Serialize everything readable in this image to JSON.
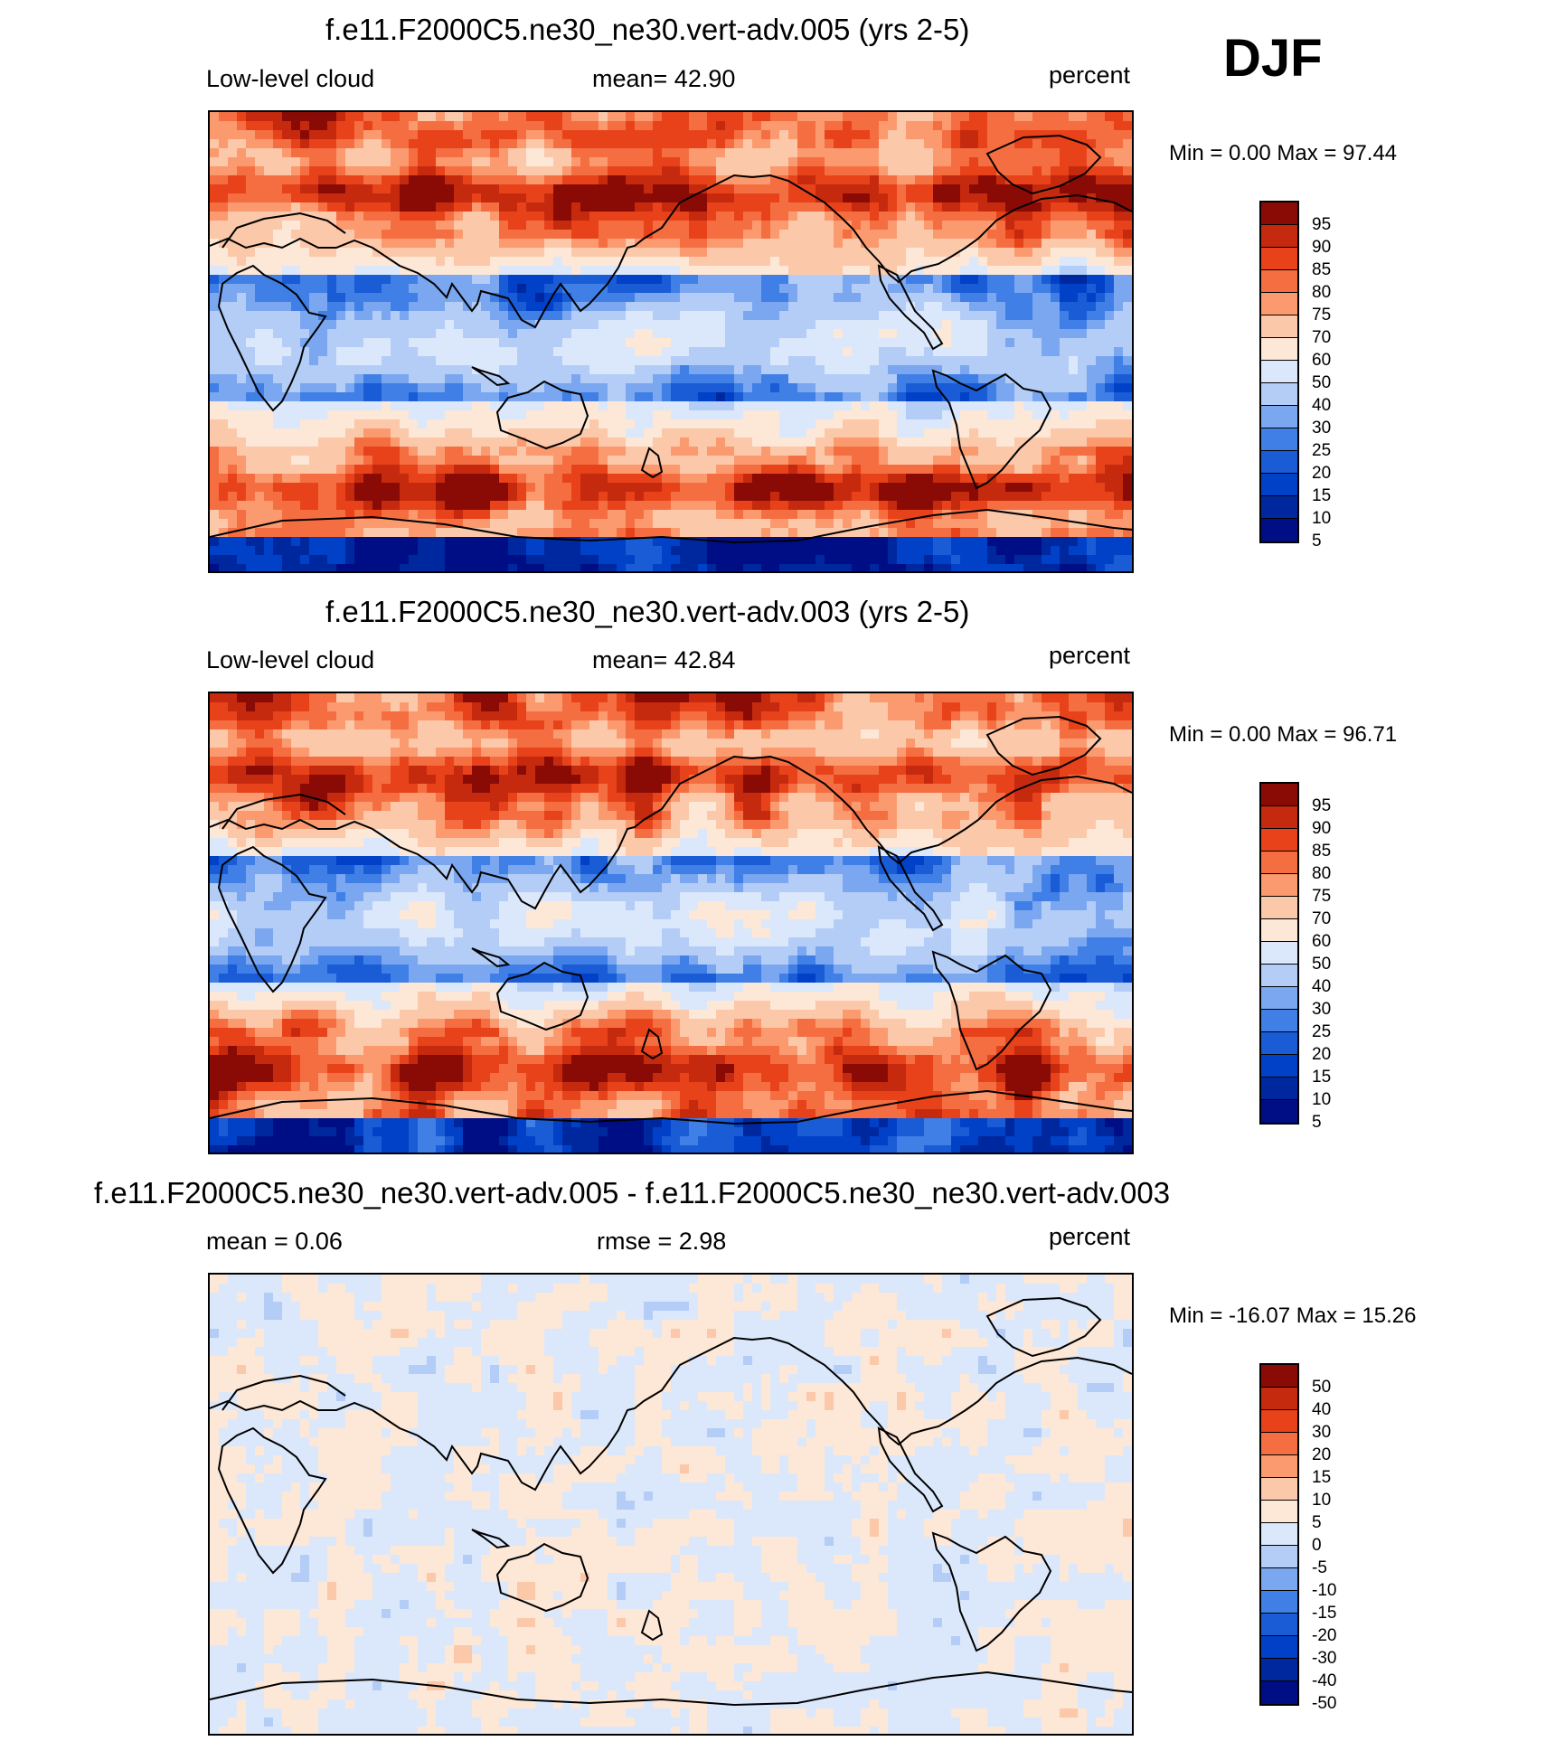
{
  "season": "DJF",
  "colors": {
    "full": [
      "#000e86",
      "#00289e",
      "#0041c8",
      "#1a5bd6",
      "#3f7fe6",
      "#7aa7f0",
      "#b3cdf7",
      "#dbe8fb",
      "#fde7d6",
      "#fcc8aa",
      "#fb9a6f",
      "#f56e42",
      "#e8421a",
      "#c62a0e",
      "#8a0a06"
    ],
    "diff": [
      "#000e86",
      "#00289e",
      "#0041c8",
      "#1a5bd6",
      "#3f7fe6",
      "#7aa7f0",
      "#b3cdf7",
      "#dbe8fb",
      "#fde7d6",
      "#fcc8aa",
      "#fb9a6f",
      "#f56e42",
      "#e8421a",
      "#c62a0e",
      "#8a0a06"
    ]
  },
  "panels": [
    {
      "title": "f.e11.F2000C5.ne30_ne30.vert-adv.005 (yrs 2-5)",
      "left_label": "Low-level cloud",
      "center_label": "mean=  42.90",
      "right_label": "percent",
      "minmax": "Min =   0.00 Max =  97.44",
      "colorbar_labels": [
        "95",
        "90",
        "85",
        "80",
        "75",
        "70",
        "60",
        "50",
        "40",
        "30",
        "25",
        "20",
        "15",
        "10",
        "5"
      ],
      "map_kind": "full"
    },
    {
      "title": "f.e11.F2000C5.ne30_ne30.vert-adv.003 (yrs 2-5)",
      "left_label": "Low-level cloud",
      "center_label": "mean=  42.84",
      "right_label": "percent",
      "minmax": "Min =   0.00 Max =  96.71",
      "colorbar_labels": [
        "95",
        "90",
        "85",
        "80",
        "75",
        "70",
        "60",
        "50",
        "40",
        "30",
        "25",
        "20",
        "15",
        "10",
        "5"
      ],
      "map_kind": "full"
    },
    {
      "title": "f.e11.F2000C5.ne30_ne30.vert-adv.005 - f.e11.F2000C5.ne30_ne30.vert-adv.003",
      "left_label": "mean =   0.06",
      "center_label": "rmse =   2.98",
      "right_label": "percent",
      "minmax": "Min = -16.07 Max =  15.26",
      "colorbar_labels": [
        "50",
        "40",
        "30",
        "20",
        "15",
        "10",
        "5",
        "0",
        "-5",
        "-10",
        "-15",
        "-20",
        "-30",
        "-40",
        "-50"
      ],
      "map_kind": "diff"
    }
  ]
}
